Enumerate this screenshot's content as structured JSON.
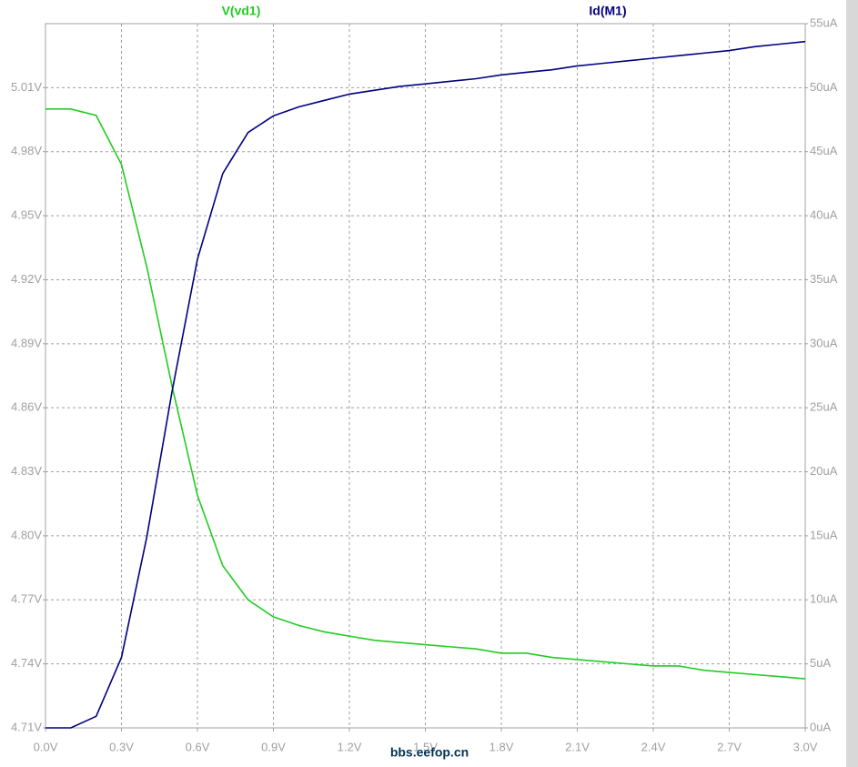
{
  "chart_data": {
    "type": "line",
    "x": [
      0.0,
      0.1,
      0.2,
      0.3,
      0.4,
      0.5,
      0.6,
      0.7,
      0.8,
      0.9,
      1.0,
      1.1,
      1.2,
      1.3,
      1.4,
      1.5,
      1.6,
      1.7,
      1.8,
      1.9,
      2.0,
      2.1,
      2.2,
      2.3,
      2.4,
      2.5,
      2.6,
      2.7,
      2.8,
      2.9,
      3.0
    ],
    "series": [
      {
        "name": "V(vd1)",
        "color": "#22cc22",
        "axis": "y",
        "values": [
          5.0,
          5.0,
          4.997,
          4.974,
          4.926,
          4.87,
          4.819,
          4.786,
          4.77,
          4.762,
          4.758,
          4.755,
          4.753,
          4.751,
          4.75,
          4.749,
          4.748,
          4.747,
          4.745,
          4.745,
          4.743,
          4.742,
          4.741,
          4.74,
          4.739,
          4.739,
          4.737,
          4.736,
          4.735,
          4.734,
          4.733
        ]
      },
      {
        "name": "Id(M1)",
        "color": "#000080",
        "axis": "y2",
        "values": [
          0,
          0,
          0.9,
          5.5,
          14.9,
          26.3,
          36.6,
          43.3,
          46.5,
          47.8,
          48.5,
          49.0,
          49.5,
          49.8,
          50.1,
          50.3,
          50.5,
          50.7,
          51.0,
          51.2,
          51.4,
          51.7,
          51.9,
          52.1,
          52.3,
          52.5,
          52.7,
          52.9,
          53.2,
          53.4,
          53.6
        ]
      }
    ],
    "xlim": [
      0,
      3
    ],
    "xticks": [
      {
        "value": 0,
        "label": "0.0V"
      },
      {
        "value": 0.3,
        "label": "0.3V"
      },
      {
        "value": 0.6,
        "label": "0.6V"
      },
      {
        "value": 0.9,
        "label": "0.9V"
      },
      {
        "value": 1.2,
        "label": "1.2V"
      },
      {
        "value": 1.5,
        "label": "1.5V"
      },
      {
        "value": 1.8,
        "label": "1.8V"
      },
      {
        "value": 2.1,
        "label": "2.1V"
      },
      {
        "value": 2.4,
        "label": "2.4V"
      },
      {
        "value": 2.7,
        "label": "2.7V"
      },
      {
        "value": 3.0,
        "label": "3.0V"
      }
    ],
    "ylim": [
      4.71,
      5.04
    ],
    "yticks": [
      {
        "value": 4.71,
        "label": "4.71V"
      },
      {
        "value": 4.74,
        "label": "4.74V"
      },
      {
        "value": 4.77,
        "label": "4.77V"
      },
      {
        "value": 4.8,
        "label": "4.80V"
      },
      {
        "value": 4.83,
        "label": "4.83V"
      },
      {
        "value": 4.86,
        "label": "4.86V"
      },
      {
        "value": 4.89,
        "label": "4.89V"
      },
      {
        "value": 4.92,
        "label": "4.92V"
      },
      {
        "value": 4.95,
        "label": "4.95V"
      },
      {
        "value": 4.98,
        "label": "4.98V"
      },
      {
        "value": 5.01,
        "label": "5.01V"
      }
    ],
    "y2lim": [
      0,
      55
    ],
    "y2ticks": [
      {
        "value": 0,
        "label": "0uA"
      },
      {
        "value": 5,
        "label": "5uA"
      },
      {
        "value": 10,
        "label": "10uA"
      },
      {
        "value": 15,
        "label": "15uA"
      },
      {
        "value": 20,
        "label": "20uA"
      },
      {
        "value": 25,
        "label": "25uA"
      },
      {
        "value": 30,
        "label": "30uA"
      },
      {
        "value": 35,
        "label": "35uA"
      },
      {
        "value": 40,
        "label": "40uA"
      },
      {
        "value": 45,
        "label": "45uA"
      },
      {
        "value": 50,
        "label": "50uA"
      },
      {
        "value": 55,
        "label": "55uA"
      }
    ],
    "grid": true,
    "watermark": "bbs.eefop.cn"
  }
}
